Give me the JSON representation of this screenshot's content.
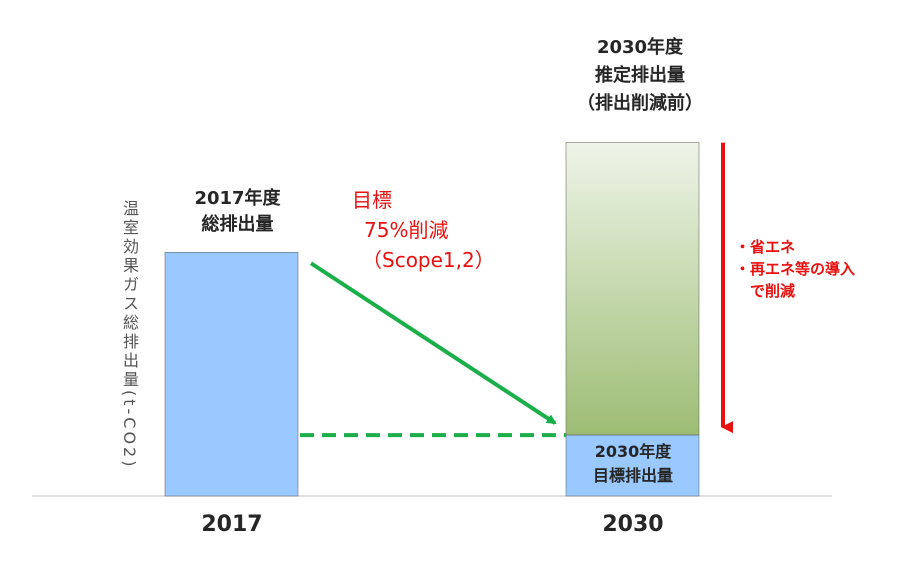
{
  "chart_data": {
    "type": "bar",
    "categories": [
      "2017",
      "2030"
    ],
    "ylabel": "温室効果ガス総排出量(t-CO2)",
    "bars": [
      {
        "category": "2017",
        "label_lines": [
          "2017年度",
          "総排出量"
        ],
        "value": 100,
        "color": "#99c9ff"
      },
      {
        "category": "2030",
        "label_lines": [
          "2030年度",
          "推定排出量",
          "（排出削減前）"
        ],
        "value": 145,
        "color_top": "#eef4e8",
        "color_bottom": "#9dbd74"
      },
      {
        "category": "2030",
        "label_lines": [
          "2030年度",
          "目標排出量"
        ],
        "value": 25,
        "color": "#99c9ff"
      }
    ],
    "ylim": [
      0,
      160
    ],
    "target_annotation": {
      "lines": [
        "目標",
        "75%削減",
        "（Scope1,2）"
      ],
      "color": "#e8110f"
    },
    "reduction_annotation": {
      "lines": [
        "・省エネ",
        "・再エネ等の導入",
        "　で削減"
      ],
      "color": "#e8110f"
    },
    "arrow_color": "#1aaf49"
  }
}
